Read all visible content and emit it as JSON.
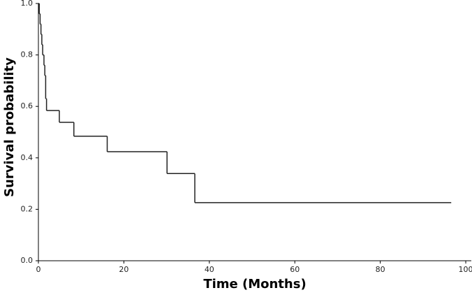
{
  "chart_data": {
    "type": "step",
    "x_label": "Time (Months)",
    "y_label": "Survival probability",
    "x": [
      0,
      0.2,
      0.4,
      0.6,
      0.8,
      1.0,
      1.3,
      1.5,
      1.7,
      1.9,
      4.9,
      8.3,
      16.1,
      30.1,
      36.6,
      96.6
    ],
    "values": [
      1.0,
      0.96,
      0.92,
      0.88,
      0.84,
      0.8,
      0.76,
      0.72,
      0.63,
      0.584,
      0.538,
      0.484,
      0.424,
      0.339,
      0.226,
      0.226
    ],
    "color": "#222222",
    "xlim": [
      0,
      101.3
    ],
    "ylim": [
      0,
      1.0
    ],
    "xticks": [
      0,
      20,
      40,
      60,
      80,
      100
    ],
    "yticks": [
      {
        "value": 0,
        "label": "0.0"
      },
      {
        "value": 0.2,
        "label": "0.2"
      },
      {
        "value": 0.4,
        "label": "0.4"
      },
      {
        "value": 0.6,
        "label": "0.6"
      },
      {
        "value": 0.8,
        "label": "0.8"
      },
      {
        "value": 1.0,
        "label": "1.0"
      }
    ]
  }
}
